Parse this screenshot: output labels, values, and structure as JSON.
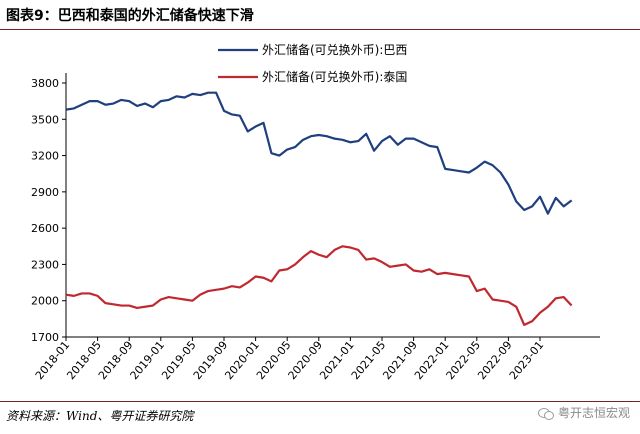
{
  "header": {
    "title": "图表9：巴西和泰国的外汇储备快速下滑"
  },
  "footer": {
    "source": "资料来源：Wind、粤开证券研究院",
    "watermark": "粤开志恒宏观"
  },
  "icons": {
    "watermark": "wechat-icon"
  },
  "colors": {
    "brazil": "#1f3f7f",
    "thailand": "#c0282f"
  },
  "chart_data": {
    "type": "line",
    "ylim": [
      1700,
      3800
    ],
    "yticks": [
      1700,
      2000,
      2300,
      2600,
      2900,
      3200,
      3500,
      3800
    ],
    "x_tick_labels": [
      "2018-01",
      "2018-05",
      "2018-09",
      "2019-01",
      "2019-05",
      "2019-09",
      "2020-01",
      "2020-05",
      "2020-09",
      "2021-01",
      "2021-05",
      "2021-09",
      "2022-01",
      "2022-05",
      "2022-09",
      "2023-01"
    ],
    "x_start": "2018-01",
    "legend_position": "top-right",
    "grid": false,
    "series": [
      {
        "name": "外汇储备(可兑换外币):巴西",
        "values": [
          3580,
          3590,
          3620,
          3650,
          3650,
          3620,
          3630,
          3660,
          3650,
          3610,
          3630,
          3600,
          3650,
          3660,
          3690,
          3680,
          3710,
          3700,
          3720,
          3720,
          3570,
          3540,
          3530,
          3400,
          3440,
          3470,
          3220,
          3200,
          3250,
          3270,
          3330,
          3360,
          3370,
          3360,
          3340,
          3330,
          3310,
          3320,
          3380,
          3240,
          3320,
          3360,
          3290,
          3340,
          3340,
          3310,
          3280,
          3270,
          3090,
          3080,
          3070,
          3060,
          3100,
          3150,
          3120,
          3060,
          2960,
          2820,
          2750,
          2780,
          2860,
          2720,
          2850,
          2780,
          2830
        ]
      },
      {
        "name": "外汇储备(可兑换外币):泰国",
        "values": [
          2050,
          2040,
          2060,
          2060,
          2040,
          1980,
          1970,
          1960,
          1960,
          1940,
          1950,
          1960,
          2010,
          2030,
          2020,
          2010,
          2000,
          2050,
          2080,
          2090,
          2100,
          2120,
          2110,
          2150,
          2200,
          2190,
          2160,
          2250,
          2260,
          2300,
          2360,
          2410,
          2380,
          2360,
          2420,
          2450,
          2440,
          2420,
          2340,
          2350,
          2320,
          2280,
          2290,
          2300,
          2250,
          2240,
          2260,
          2220,
          2230,
          2220,
          2210,
          2200,
          2080,
          2100,
          2010,
          2000,
          1990,
          1950,
          1800,
          1830,
          1900,
          1950,
          2020,
          2030,
          1960
        ]
      }
    ]
  }
}
